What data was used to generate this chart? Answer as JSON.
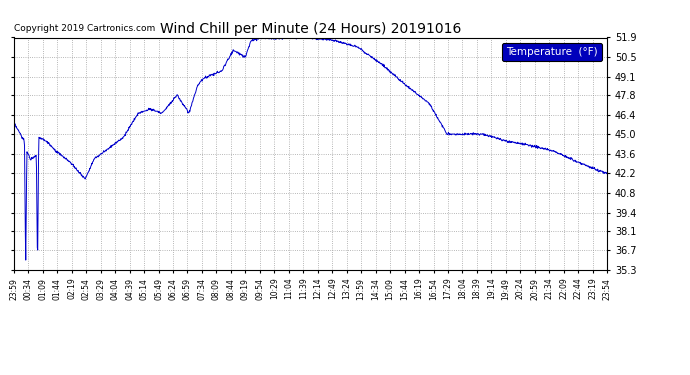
{
  "title": "Wind Chill per Minute (24 Hours) 20191016",
  "copyright": "Copyright 2019 Cartronics.com",
  "legend_label": "Temperature  (°F)",
  "line_color": "#0000cc",
  "background_color": "#ffffff",
  "plot_bg_color": "#ffffff",
  "grid_color": "#888888",
  "ylim": [
    35.3,
    51.9
  ],
  "yticks": [
    35.3,
    36.7,
    38.1,
    39.4,
    40.8,
    42.2,
    43.6,
    45.0,
    46.4,
    47.8,
    49.1,
    50.5,
    51.9
  ],
  "xtick_labels": [
    "23:59",
    "00:34",
    "01:09",
    "01:44",
    "02:19",
    "02:54",
    "03:29",
    "04:04",
    "04:39",
    "05:14",
    "05:49",
    "06:24",
    "06:59",
    "07:34",
    "08:09",
    "08:44",
    "09:19",
    "09:54",
    "10:29",
    "11:04",
    "11:39",
    "12:14",
    "12:49",
    "13:24",
    "13:59",
    "14:34",
    "15:09",
    "15:44",
    "16:19",
    "16:54",
    "17:29",
    "18:04",
    "18:39",
    "19:14",
    "19:49",
    "20:24",
    "20:59",
    "21:34",
    "22:09",
    "22:44",
    "23:19",
    "23:54"
  ],
  "control_x": [
    0.0,
    0.018,
    0.02,
    0.022,
    0.028,
    0.038,
    0.04,
    0.042,
    0.055,
    0.07,
    0.095,
    0.12,
    0.135,
    0.16,
    0.185,
    0.21,
    0.23,
    0.25,
    0.275,
    0.295,
    0.31,
    0.32,
    0.35,
    0.37,
    0.39,
    0.4,
    0.42,
    0.44,
    0.46,
    0.49,
    0.52,
    0.54,
    0.58,
    0.62,
    0.66,
    0.7,
    0.73,
    0.76,
    0.79,
    0.83,
    0.87,
    0.91,
    0.95,
    0.98,
    1.0
  ],
  "control_y": [
    45.8,
    44.5,
    35.3,
    43.8,
    43.2,
    43.5,
    35.3,
    44.8,
    44.5,
    43.8,
    43.0,
    41.8,
    43.2,
    44.0,
    44.8,
    46.5,
    46.8,
    46.5,
    47.8,
    46.5,
    48.5,
    49.0,
    49.5,
    51.0,
    50.5,
    51.7,
    51.9,
    51.8,
    51.9,
    51.9,
    51.8,
    51.7,
    51.2,
    50.0,
    48.5,
    47.2,
    45.0,
    45.0,
    45.0,
    44.5,
    44.2,
    43.8,
    43.0,
    42.5,
    42.2
  ]
}
